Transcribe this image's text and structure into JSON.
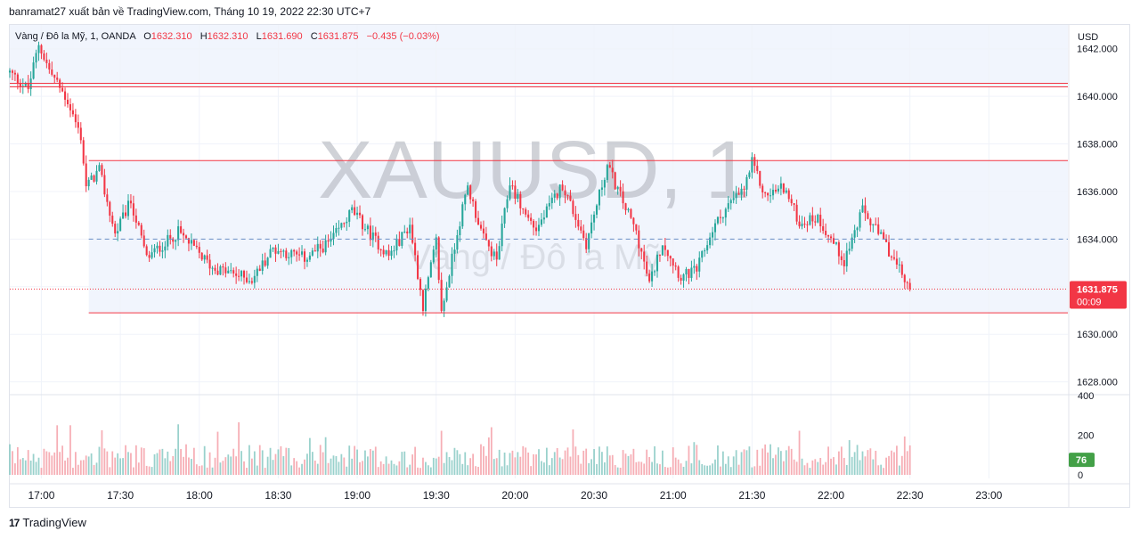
{
  "caption": "banramat27 xuất bản về TradingView.com, Tháng 10 19, 2022 22:30 UTC+7",
  "legend": {
    "symbol": "Vàng / Đô la Mỹ, 1, OANDA",
    "open_label": "O",
    "open": "1632.310",
    "high_label": "H",
    "high": "1632.310",
    "low_label": "L",
    "low": "1631.690",
    "close_label": "C",
    "close": "1631.875",
    "change": "−0.435 (−0.03%)"
  },
  "watermark": {
    "title": "XAUUSD, 1",
    "subtitle": "Vàng / Đô la Mỹ"
  },
  "footer": {
    "logo_mark": "17",
    "brand": "TradingView"
  },
  "price_axis": {
    "currency": "USD",
    "ticks": [
      "1642.000",
      "1640.000",
      "1638.000",
      "1636.000",
      "1634.000",
      "1632.000",
      "1630.000",
      "1628.000"
    ]
  },
  "volume_axis": {
    "ticks": [
      "400",
      "200",
      "0"
    ],
    "last_volume": "76"
  },
  "time_axis": {
    "ticks": [
      "17:00",
      "17:30",
      "18:00",
      "18:30",
      "19:00",
      "19:30",
      "20:00",
      "20:30",
      "21:00",
      "21:30",
      "22:00",
      "22:30",
      "23:00"
    ]
  },
  "last_price_badge": {
    "price": "1631.875",
    "countdown": "00:09"
  },
  "colors": {
    "up": "#26a69a",
    "down": "#f23645",
    "line": "#f23645",
    "zone": "#e8eefb",
    "dashed": "#6a8ec6"
  },
  "chart_data": {
    "type": "candlestick",
    "title": "XAUUSD, 1",
    "ylim": [
      1627.5,
      1643.0
    ],
    "volume_ylim": [
      0,
      400
    ],
    "x_range": [
      "16:48",
      "23:30"
    ],
    "interval_minutes": 1,
    "horizontal_lines": [
      1640.55,
      1640.4,
      1637.3,
      1630.9
    ],
    "dashed_line": 1634.0,
    "shaded_zones": [
      [
        1640.4,
        1643.0
      ],
      [
        1630.9,
        1637.3
      ]
    ],
    "key_points": [
      {
        "time": "16:48",
        "price": 1641.0
      },
      {
        "time": "16:55",
        "price": 1640.3
      },
      {
        "time": "16:59",
        "price": 1642.2
      },
      {
        "time": "17:03",
        "price": 1641.1
      },
      {
        "time": "17:10",
        "price": 1639.8
      },
      {
        "time": "17:15",
        "price": 1638.3
      },
      {
        "time": "17:17",
        "price": 1636.2
      },
      {
        "time": "17:22",
        "price": 1636.9
      },
      {
        "time": "17:28",
        "price": 1634.2
      },
      {
        "time": "17:34",
        "price": 1635.6
      },
      {
        "time": "17:40",
        "price": 1633.2
      },
      {
        "time": "17:52",
        "price": 1634.3
      },
      {
        "time": "18:05",
        "price": 1632.8
      },
      {
        "time": "18:20",
        "price": 1632.3
      },
      {
        "time": "18:28",
        "price": 1633.6
      },
      {
        "time": "18:40",
        "price": 1633.2
      },
      {
        "time": "18:50",
        "price": 1633.9
      },
      {
        "time": "18:58",
        "price": 1635.2
      },
      {
        "time": "19:05",
        "price": 1634.2
      },
      {
        "time": "19:12",
        "price": 1633.3
      },
      {
        "time": "19:20",
        "price": 1634.6
      },
      {
        "time": "19:25",
        "price": 1631.2
      },
      {
        "time": "19:30",
        "price": 1633.9
      },
      {
        "time": "19:32",
        "price": 1630.9
      },
      {
        "time": "19:38",
        "price": 1634.3
      },
      {
        "time": "19:42",
        "price": 1636.2
      },
      {
        "time": "19:48",
        "price": 1634.0
      },
      {
        "time": "19:53",
        "price": 1633.1
      },
      {
        "time": "19:58",
        "price": 1636.4
      },
      {
        "time": "20:03",
        "price": 1635.2
      },
      {
        "time": "20:08",
        "price": 1634.4
      },
      {
        "time": "20:18",
        "price": 1636.3
      },
      {
        "time": "20:27",
        "price": 1633.8
      },
      {
        "time": "20:35",
        "price": 1637.1
      },
      {
        "time": "20:40",
        "price": 1635.8
      },
      {
        "time": "20:46",
        "price": 1634.3
      },
      {
        "time": "20:51",
        "price": 1632.1
      },
      {
        "time": "20:56",
        "price": 1633.9
      },
      {
        "time": "21:03",
        "price": 1632.4
      },
      {
        "time": "21:09",
        "price": 1632.7
      },
      {
        "time": "21:15",
        "price": 1634.4
      },
      {
        "time": "21:20",
        "price": 1635.3
      },
      {
        "time": "21:27",
        "price": 1636.1
      },
      {
        "time": "21:30",
        "price": 1637.2
      },
      {
        "time": "21:35",
        "price": 1635.8
      },
      {
        "time": "21:42",
        "price": 1636.2
      },
      {
        "time": "21:48",
        "price": 1634.7
      },
      {
        "time": "21:55",
        "price": 1634.9
      },
      {
        "time": "22:00",
        "price": 1634.0
      },
      {
        "time": "22:05",
        "price": 1633.1
      },
      {
        "time": "22:12",
        "price": 1635.2
      },
      {
        "time": "22:20",
        "price": 1633.9
      },
      {
        "time": "22:27",
        "price": 1632.5
      },
      {
        "time": "22:30",
        "price": 1631.9
      }
    ]
  }
}
